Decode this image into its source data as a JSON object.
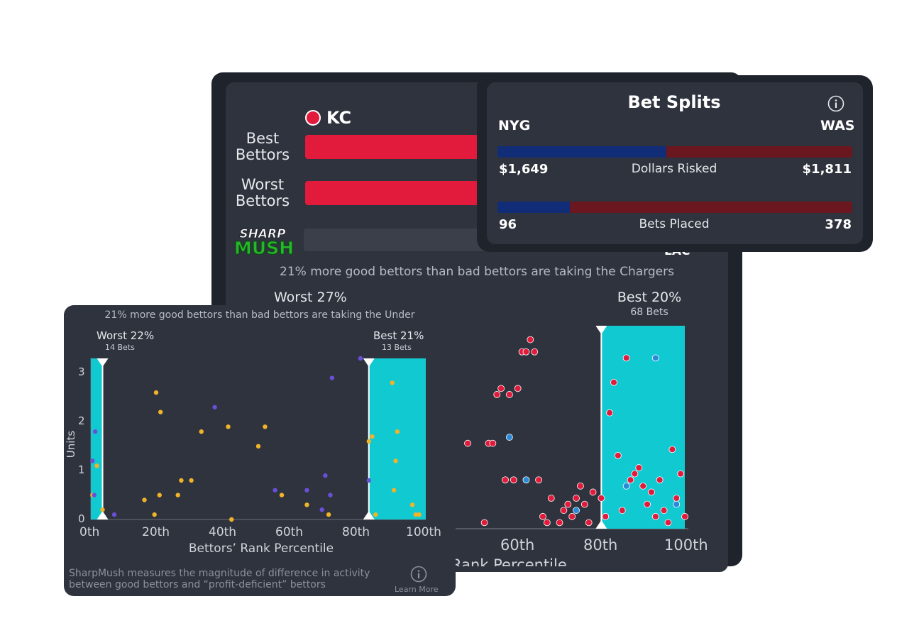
{
  "back_card": {
    "team_label": "KC",
    "rows": [
      {
        "label_line1": "Best",
        "label_line2": "Bettors"
      },
      {
        "label_line1": "Worst",
        "label_line2": "Bettors"
      }
    ],
    "logo_text_top": "SHARP",
    "logo_text_bottom": "MUSH",
    "opponent_label": "LAC",
    "subtitle": "21% more good bettors than bad bettors are taking the Chargers",
    "worst_label": "Worst 27%",
    "best_label": "Best 20%",
    "best_sub": "68 Bets",
    "x_ticks": [
      "60th",
      "80th",
      "100th"
    ],
    "x_label": "Rank Percentile"
  },
  "bet_splits": {
    "title": "Bet Splits",
    "left_team": "NYG",
    "right_team": "WAS",
    "rows": [
      {
        "left_value": "$1,649",
        "label": "Dollars Risked",
        "right_value": "$1,811",
        "left_share": 0.476
      },
      {
        "left_value": "96",
        "label": "Bets Placed",
        "right_value": "378",
        "left_share": 0.203
      }
    ],
    "colors": {
      "left": "#122d78",
      "right": "#6a1720"
    }
  },
  "front_card": {
    "subtitle": "21% more good bettors than bad bettors are taking the Under",
    "worst_label": "Worst 22%",
    "worst_sub": "14 Bets",
    "best_label": "Best 21%",
    "best_sub": "13 Bets",
    "y_ticks": [
      "3",
      "2",
      "1",
      "0"
    ],
    "y_label": "Units",
    "x_ticks": [
      "0th",
      "20th",
      "40th",
      "60th",
      "80th",
      "100th"
    ],
    "x_label": "Bettors’ Rank Percentile",
    "footer": "SharpMush measures the magnitude of difference in activity between good bettors and “profit-deficient” bettors",
    "learn_more": "Learn More"
  },
  "chart_data": [
    {
      "type": "scatter",
      "title": "",
      "xlabel": "Bettors’ Rank Percentile",
      "ylabel": "Units",
      "xlim": [
        0,
        100
      ],
      "ylim": [
        0,
        3.3
      ],
      "shaded_regions": [
        {
          "label": "Worst 22%",
          "from": 0,
          "to": 3.5
        },
        {
          "label": "Best 21%",
          "from": 83,
          "to": 100
        }
      ],
      "colors": {
        "yellow": "#f0b429",
        "purple": "#6a4fd8",
        "shade": "#11c9d0"
      },
      "series": [
        {
          "values": [
            [
              0.5,
              0.5
            ],
            [
              1.8,
              1.1
            ],
            [
              3.5,
              0.2
            ],
            [
              16,
              0.4
            ],
            [
              19,
              0.1
            ],
            [
              19.5,
              2.6
            ],
            [
              20.5,
              0.5
            ],
            [
              20.8,
              2.2
            ],
            [
              26,
              0.5
            ],
            [
              27,
              0.8
            ],
            [
              30,
              0.8
            ],
            [
              33,
              1.8
            ],
            [
              41,
              1.9
            ],
            [
              42,
              0
            ],
            [
              50,
              1.5
            ],
            [
              52,
              1.9
            ],
            [
              57,
              0.5
            ],
            [
              64.5,
              0.3
            ],
            [
              71,
              0.1
            ],
            [
              83,
              1.6
            ],
            [
              84,
              1.7
            ],
            [
              85,
              0.1
            ],
            [
              90,
              2.8
            ],
            [
              90.5,
              0.6
            ],
            [
              91,
              1.2
            ],
            [
              91.5,
              1.8
            ],
            [
              96,
              0.3
            ],
            [
              97,
              0.1
            ],
            [
              98,
              0.1
            ]
          ]
        },
        {
          "values": [
            [
              0.5,
              1.2
            ],
            [
              1,
              0.5
            ],
            [
              1.3,
              1.8
            ],
            [
              7,
              0.1
            ],
            [
              37,
              2.3
            ],
            [
              55,
              0.6
            ],
            [
              64.5,
              0.6
            ],
            [
              69,
              0.2
            ],
            [
              70,
              0.9
            ],
            [
              71.5,
              0.5
            ],
            [
              72,
              2.9
            ],
            [
              80.5,
              3.3
            ],
            [
              83,
              0.8
            ]
          ]
        }
      ]
    },
    {
      "type": "scatter",
      "title": "",
      "xlabel": "Rank Percentile",
      "ylabel": "",
      "xlim": [
        40,
        100
      ],
      "ylim": [
        0,
        3.2
      ],
      "shaded_regions": [
        {
          "label": "Best 20%",
          "from": 80,
          "to": 100
        }
      ],
      "colors": {
        "red": "#e21b3c",
        "blue": "#2a8ad8",
        "shade": "#11c9d0"
      },
      "series": [
        {
          "values": [
            [
              48,
              1.4
            ],
            [
              52,
              0.1
            ],
            [
              53,
              1.4
            ],
            [
              54,
              1.4
            ],
            [
              55,
              2.2
            ],
            [
              56,
              2.3
            ],
            [
              57,
              0.8
            ],
            [
              58,
              2.2
            ],
            [
              59,
              0.8
            ],
            [
              60,
              2.3
            ],
            [
              61,
              2.9
            ],
            [
              62,
              2.9
            ],
            [
              63,
              3.1
            ],
            [
              64,
              2.9
            ],
            [
              65,
              0.8
            ],
            [
              66,
              0.2
            ],
            [
              67,
              0.1
            ],
            [
              68,
              0.5
            ],
            [
              70,
              0.1
            ],
            [
              71,
              0.3
            ],
            [
              72,
              0.4
            ],
            [
              73,
              0.2
            ],
            [
              74,
              0.5
            ],
            [
              75,
              0.7
            ],
            [
              76,
              0.4
            ],
            [
              77,
              0.1
            ],
            [
              78,
              0.6
            ],
            [
              80,
              0.5
            ],
            [
              81,
              0.2
            ],
            [
              82,
              1.9
            ],
            [
              83,
              2.4
            ],
            [
              84,
              1.2
            ],
            [
              85,
              0.3
            ],
            [
              86,
              2.8
            ],
            [
              87,
              0.8
            ],
            [
              88,
              0.9
            ],
            [
              89,
              1
            ],
            [
              90,
              0.7
            ],
            [
              91,
              0.4
            ],
            [
              92,
              0.6
            ],
            [
              93,
              0.2
            ],
            [
              94,
              0.8
            ],
            [
              95,
              0.3
            ],
            [
              96,
              0.1
            ],
            [
              97,
              1.3
            ],
            [
              98,
              0.5
            ],
            [
              99,
              0.9
            ],
            [
              100,
              0.2
            ]
          ]
        },
        {
          "values": [
            [
              58,
              1.5
            ],
            [
              62,
              0.8
            ],
            [
              74,
              0.3
            ],
            [
              86,
              0.7
            ],
            [
              93,
              2.8
            ],
            [
              98,
              0.4
            ]
          ]
        }
      ]
    }
  ]
}
